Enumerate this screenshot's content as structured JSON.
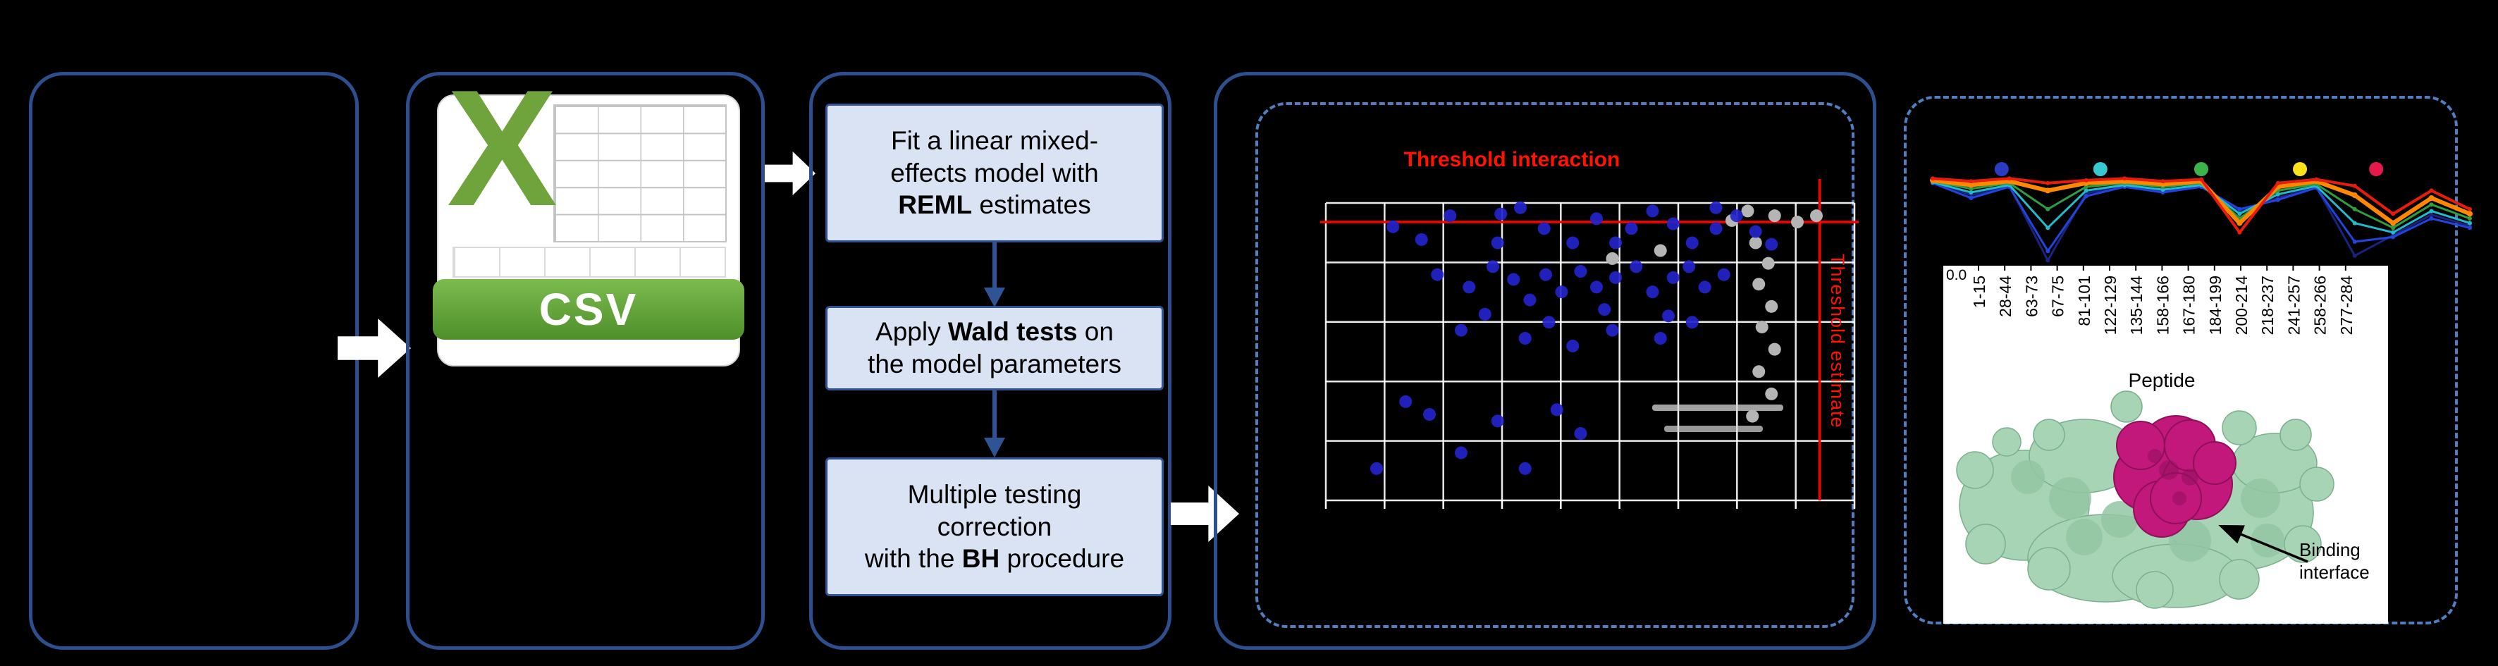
{
  "figure": {
    "background": "#000000"
  },
  "colors": {
    "panel_border": "#2e4f8f",
    "dashed_border": "#4f7fc2",
    "box_bg": "#dae3f3",
    "box_border": "#2f5496",
    "flow_arrow": "#2f5496",
    "big_arrow": "#ffffff",
    "csv_green": "#6fa43c",
    "csv_band_top": "#7cbb4e",
    "csv_band_bottom": "#4f8f2a",
    "csv_grid_line": "#c4c4c4",
    "protein_green": "#a8d4b6",
    "protein_green_dark": "#79b08d",
    "protein_green_2": "#93c6a4",
    "protein_pink": "#c2187c",
    "protein_pink_dark": "#8e1059"
  },
  "panels": {
    "csv_icon": {
      "letter": "X",
      "label": "CSV"
    },
    "flow": {
      "steps": [
        {
          "pre": "Fit a linear mixed-\neffects model with\n",
          "bold": "REML",
          "post": " estimates"
        },
        {
          "pre": "Apply ",
          "bold": "Wald tests",
          "post": " on\nthe model parameters"
        },
        {
          "pre": "Multiple testing\ncorrection\nwith the ",
          "bold": "BH",
          "post": " procedure"
        }
      ]
    },
    "protein": {
      "binding_label": "Binding\ninterface"
    }
  },
  "chart_data": [
    {
      "type": "scatter",
      "title": "Threshold interaction",
      "right_label": "Threshold estimate",
      "grid": "on",
      "threshold_color": "#ff0000",
      "threshold_h_frac": 0.064,
      "threshold_v_frac": 0.934,
      "point_colors": {
        "significant": "#2323cb",
        "nonsignificant": "#b5b5b5"
      },
      "significant_points": [
        [
          0.127,
          0.08
        ],
        [
          0.181,
          0.123
        ],
        [
          0.235,
          0.043
        ],
        [
          0.325,
          0.134
        ],
        [
          0.368,
          0.016
        ],
        [
          0.413,
          0.086
        ],
        [
          0.467,
          0.134
        ],
        [
          0.512,
          0.053
        ],
        [
          0.548,
          0.134
        ],
        [
          0.578,
          0.086
        ],
        [
          0.618,
          0.027
        ],
        [
          0.657,
          0.07
        ],
        [
          0.693,
          0.134
        ],
        [
          0.738,
          0.086
        ],
        [
          0.777,
          0.043
        ],
        [
          0.813,
          0.096
        ],
        [
          0.843,
          0.139
        ],
        [
          0.211,
          0.241
        ],
        [
          0.271,
          0.283
        ],
        [
          0.316,
          0.214
        ],
        [
          0.355,
          0.257
        ],
        [
          0.386,
          0.326
        ],
        [
          0.416,
          0.241
        ],
        [
          0.446,
          0.299
        ],
        [
          0.482,
          0.23
        ],
        [
          0.512,
          0.283
        ],
        [
          0.548,
          0.251
        ],
        [
          0.587,
          0.214
        ],
        [
          0.618,
          0.299
        ],
        [
          0.657,
          0.251
        ],
        [
          0.687,
          0.214
        ],
        [
          0.717,
          0.283
        ],
        [
          0.753,
          0.241
        ],
        [
          0.256,
          0.428
        ],
        [
          0.377,
          0.455
        ],
        [
          0.422,
          0.401
        ],
        [
          0.467,
          0.481
        ],
        [
          0.542,
          0.428
        ],
        [
          0.633,
          0.455
        ],
        [
          0.693,
          0.401
        ],
        [
          0.151,
          0.668
        ],
        [
          0.196,
          0.711
        ],
        [
          0.256,
          0.84
        ],
        [
          0.325,
          0.733
        ],
        [
          0.377,
          0.893
        ],
        [
          0.437,
          0.695
        ],
        [
          0.482,
          0.775
        ],
        [
          0.096,
          0.893
        ],
        [
          0.331,
          0.037
        ],
        [
          0.738,
          0.016
        ],
        [
          0.301,
          0.374
        ],
        [
          0.527,
          0.358
        ],
        [
          0.648,
          0.38
        ]
      ],
      "nonsignificant_points": [
        [
          0.798,
          0.027
        ],
        [
          0.849,
          0.043
        ],
        [
          0.892,
          0.064
        ],
        [
          0.928,
          0.043
        ],
        [
          0.813,
          0.134
        ],
        [
          0.837,
          0.203
        ],
        [
          0.819,
          0.273
        ],
        [
          0.843,
          0.348
        ],
        [
          0.825,
          0.417
        ],
        [
          0.849,
          0.492
        ],
        [
          0.819,
          0.567
        ],
        [
          0.843,
          0.642
        ],
        [
          0.807,
          0.717
        ],
        [
          0.633,
          0.16
        ],
        [
          0.542,
          0.187
        ],
        [
          0.768,
          0.059
        ]
      ]
    },
    {
      "type": "line",
      "xlabel": "Peptide",
      "y_zero_label": "0.0",
      "categories": [
        "1-15",
        "28-44",
        "63-73",
        "67-75",
        "81-101",
        "122-129",
        "135-144",
        "158-166",
        "167-180",
        "184-199",
        "200-214",
        "218-237",
        "241-257",
        "258-266",
        "277-284"
      ],
      "significance_dot_colors": [
        "#2b3bc4",
        "#39c8d0",
        "#3cb44b",
        "#ffe119",
        "#e6194b"
      ],
      "series": [
        {
          "name": "navy",
          "color": "#1a237e",
          "width": 3,
          "values": [
            0.9,
            0.75,
            0.85,
            0.05,
            0.77,
            0.85,
            0.8,
            0.85,
            0.58,
            0.72,
            0.84,
            0.1,
            0.32,
            0.54,
            0.42
          ]
        },
        {
          "name": "blue",
          "color": "#2244dd",
          "width": 3,
          "values": [
            0.88,
            0.72,
            0.84,
            0.15,
            0.74,
            0.84,
            0.78,
            0.84,
            0.6,
            0.7,
            0.83,
            0.25,
            0.3,
            0.5,
            0.4
          ]
        },
        {
          "name": "cyan",
          "color": "#22bbcc",
          "width": 3,
          "values": [
            0.89,
            0.78,
            0.86,
            0.4,
            0.8,
            0.86,
            0.81,
            0.86,
            0.55,
            0.76,
            0.85,
            0.45,
            0.35,
            0.58,
            0.45
          ]
        },
        {
          "name": "green",
          "color": "#2e9e3e",
          "width": 3,
          "values": [
            0.9,
            0.82,
            0.88,
            0.6,
            0.84,
            0.88,
            0.84,
            0.88,
            0.5,
            0.8,
            0.87,
            0.6,
            0.4,
            0.65,
            0.5
          ]
        },
        {
          "name": "orange",
          "color": "#ff8800",
          "width": 6,
          "values": [
            0.91,
            0.86,
            0.9,
            0.8,
            0.88,
            0.9,
            0.87,
            0.9,
            0.45,
            0.84,
            0.9,
            0.75,
            0.45,
            0.72,
            0.55
          ]
        },
        {
          "name": "red",
          "color": "#e81c0c",
          "width": 4,
          "values": [
            0.93,
            0.9,
            0.93,
            0.88,
            0.91,
            0.93,
            0.9,
            0.92,
            0.35,
            0.88,
            0.92,
            0.85,
            0.55,
            0.8,
            0.6
          ]
        }
      ]
    }
  ]
}
